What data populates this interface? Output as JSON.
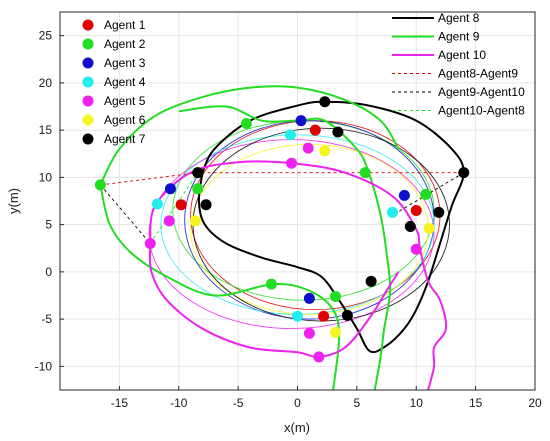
{
  "chart_data": {
    "type": "line",
    "xlabel": "x(m)",
    "ylabel": "y(m)",
    "xlim": [
      -20,
      20
    ],
    "ylim": [
      -12.5,
      27.5
    ],
    "xticks": [
      -15,
      -10,
      -5,
      0,
      5,
      10,
      15,
      20
    ],
    "yticks": [
      -10,
      -5,
      0,
      5,
      10,
      15,
      20,
      25
    ],
    "xtick_labels": [
      "-15",
      "-10",
      "-5",
      "0",
      "5",
      "10",
      "15",
      "20"
    ],
    "ytick_labels": [
      "-10",
      "-5",
      "0",
      "5",
      "10",
      "15",
      "20",
      "25"
    ],
    "grid": true,
    "legend_left": {
      "placement": "top-left",
      "entries": [
        {
          "label": "Agent 1",
          "color": "#e00000"
        },
        {
          "label": "Agent 2",
          "color": "#22dd22"
        },
        {
          "label": "Agent 3",
          "color": "#1010cc"
        },
        {
          "label": "Agent 4",
          "color": "#22eeee"
        },
        {
          "label": "Agent 5",
          "color": "#ee22ee"
        },
        {
          "label": "Agent 6",
          "color": "#f5f522"
        },
        {
          "label": "Agent 7",
          "color": "#000000"
        }
      ]
    },
    "legend_right": {
      "placement": "top-right",
      "entries": [
        {
          "label": "Agent 8",
          "color": "#000000",
          "style": "solid-thick"
        },
        {
          "label": "Agent 9",
          "color": "#22dd22",
          "style": "solid-thick"
        },
        {
          "label": "Agent 10",
          "color": "#ee22ee",
          "style": "solid-thick"
        },
        {
          "label": "Agent8-Agent9",
          "color": "#e00000",
          "style": "dashed"
        },
        {
          "label": "Agent9-Agent10",
          "color": "#000000",
          "style": "dashed"
        },
        {
          "label": "Agent10-Agent8",
          "color": "#22dd22",
          "style": "dashed"
        }
      ]
    },
    "leader_paths": [
      {
        "name": "Agent 8",
        "color": "#000000",
        "width": 2,
        "points": [
          [
            -8,
            10.5
          ],
          [
            -7,
            13
          ],
          [
            -4,
            16
          ],
          [
            0,
            17.6
          ],
          [
            2.3,
            18
          ],
          [
            6,
            17.6
          ],
          [
            10,
            16
          ],
          [
            13,
            13
          ],
          [
            14,
            10.5
          ],
          [
            13,
            7
          ],
          [
            12,
            3
          ],
          [
            11,
            -1
          ],
          [
            10,
            -4
          ],
          [
            9,
            -6
          ],
          [
            7.5,
            -7.8
          ],
          [
            6.1,
            -8.4
          ],
          [
            5,
            -6
          ],
          [
            3.5,
            -3
          ],
          [
            2,
            -0.5
          ],
          [
            0,
            0.5
          ],
          [
            -3,
            1.5
          ],
          [
            -6,
            3
          ],
          [
            -7.8,
            5
          ],
          [
            -8.3,
            7.5
          ],
          [
            -8,
            10.5
          ]
        ]
      },
      {
        "name": "Agent 9",
        "color": "#22dd22",
        "width": 2,
        "points": [
          [
            -10,
            17
          ],
          [
            -6,
            17.5
          ],
          [
            -3,
            16
          ],
          [
            0,
            16
          ],
          [
            2.3,
            16
          ],
          [
            5,
            13
          ],
          [
            6,
            10.5
          ],
          [
            7,
            6
          ],
          [
            7.5,
            2
          ],
          [
            7.8,
            -2
          ],
          [
            7.3,
            -6
          ],
          [
            7,
            -9
          ],
          [
            6.5,
            -12.5
          ]
        ]
      },
      {
        "name": "Agent 9 (arc)",
        "color": "#22dd22",
        "width": 2,
        "points": [
          [
            -16.6,
            9.2
          ],
          [
            -15.8,
            5
          ],
          [
            -14,
            2
          ],
          [
            -11,
            -0.5
          ],
          [
            -7,
            -2.5
          ],
          [
            -2,
            -1.3
          ],
          [
            1,
            -2
          ],
          [
            3,
            -4
          ],
          [
            3.5,
            -7
          ],
          [
            3,
            -12.5
          ]
        ]
      },
      {
        "name": "Agent 9 (top arc)",
        "color": "#22dd22",
        "width": 2,
        "points": [
          [
            -16.6,
            9.2
          ],
          [
            -15,
            13
          ],
          [
            -12,
            16.5
          ],
          [
            -8,
            18.5
          ],
          [
            -4,
            19.5
          ],
          [
            0,
            19.5
          ],
          [
            4,
            18.2
          ],
          [
            7,
            16
          ],
          [
            8.5,
            13
          ]
        ]
      },
      {
        "name": "Agent 10",
        "color": "#ee22ee",
        "width": 2,
        "points": [
          [
            -12.4,
            3
          ],
          [
            -12,
            7
          ],
          [
            -9,
            10.5
          ],
          [
            -5,
            11.6
          ],
          [
            -0.5,
            11.5
          ],
          [
            4,
            10.5
          ],
          [
            8,
            8
          ],
          [
            10,
            4.5
          ],
          [
            10.3,
            2.5
          ],
          [
            11,
            -1
          ],
          [
            12,
            -3
          ],
          [
            12.5,
            -6
          ],
          [
            11.5,
            -8
          ],
          [
            11.5,
            -10
          ],
          [
            11,
            -12.5
          ]
        ]
      },
      {
        "name": "Agent 10 (inner)",
        "color": "#ee22ee",
        "width": 2,
        "points": [
          [
            -12.4,
            3
          ],
          [
            -12.3,
            0
          ],
          [
            -11,
            -3
          ],
          [
            -8,
            -6
          ],
          [
            -4,
            -8
          ],
          [
            0,
            -8.5
          ],
          [
            1.8,
            -9
          ],
          [
            4,
            -8
          ],
          [
            6,
            -5
          ],
          [
            7.5,
            -2
          ],
          [
            8.5,
            0
          ]
        ]
      }
    ],
    "markers": [
      {
        "agent": "Agent 1",
        "color": "#e00000",
        "points": [
          [
            -9.8,
            7.1
          ],
          [
            1.5,
            15
          ],
          [
            10,
            6.5
          ],
          [
            2.2,
            -4.7
          ]
        ]
      },
      {
        "agent": "Agent 2",
        "color": "#22dd22",
        "points": [
          [
            -8.4,
            8.8
          ],
          [
            -4.3,
            15.7
          ],
          [
            10.8,
            8.2
          ],
          [
            3.2,
            -2.6
          ],
          [
            -2.2,
            -1.3
          ],
          [
            5.7,
            10.5
          ]
        ]
      },
      {
        "agent": "Agent 3",
        "color": "#1010cc",
        "points": [
          [
            -10.7,
            8.8
          ],
          [
            0.3,
            16
          ],
          [
            9,
            8.1
          ],
          [
            1,
            -2.8
          ]
        ]
      },
      {
        "agent": "Agent 4",
        "color": "#22eeee",
        "points": [
          [
            -11.8,
            7.2
          ],
          [
            -0.6,
            14.5
          ],
          [
            8,
            6.3
          ],
          [
            0,
            -4.7
          ]
        ]
      },
      {
        "agent": "Agent 5",
        "color": "#ee22ee",
        "points": [
          [
            -12.4,
            3
          ],
          [
            -10.8,
            5.4
          ],
          [
            -0.5,
            11.5
          ],
          [
            10,
            2.4
          ],
          [
            1,
            -6.5
          ],
          [
            1.8,
            -9
          ]
        ]
      },
      {
        "agent": "Agent 6",
        "color": "#f5f522",
        "points": [
          [
            -8.6,
            5.4
          ],
          [
            2.3,
            12.8
          ],
          [
            11.1,
            4.6
          ],
          [
            3.2,
            -6.4
          ]
        ]
      },
      {
        "agent": "Agent 7",
        "color": "#000000",
        "points": [
          [
            -7.7,
            7.1
          ],
          [
            3.4,
            14.8
          ],
          [
            9.5,
            4.8
          ],
          [
            4.2,
            -4.6
          ]
        ]
      },
      {
        "agent": "Agent 8",
        "color": "#000000",
        "points": [
          [
            -8.4,
            10.5
          ],
          [
            2.3,
            18
          ],
          [
            14,
            10.5
          ],
          [
            11.9,
            6.3
          ],
          [
            6.2,
            -1
          ]
        ]
      },
      {
        "agent": "Agent 9",
        "color": "#22dd22",
        "points": [
          [
            -16.6,
            9.2
          ]
        ]
      },
      {
        "agent": "Agent 10",
        "color": "#ee22ee",
        "points": [
          [
            0.9,
            13.1
          ]
        ]
      }
    ],
    "dashed_links": [
      {
        "color": "#e00000",
        "points": [
          [
            -16.6,
            9.2
          ],
          [
            -8.4,
            10.5
          ],
          [
            14,
            10.5
          ]
        ]
      },
      {
        "color": "#000000",
        "points": [
          [
            -16.6,
            9.2
          ],
          [
            -12.4,
            3
          ]
        ]
      },
      {
        "color": "#000000",
        "points": [
          [
            14,
            10.5
          ],
          [
            8,
            6
          ]
        ]
      },
      {
        "color": "#22dd22",
        "points": [
          [
            -12.4,
            3
          ],
          [
            -8.4,
            10.5
          ]
        ]
      }
    ]
  }
}
